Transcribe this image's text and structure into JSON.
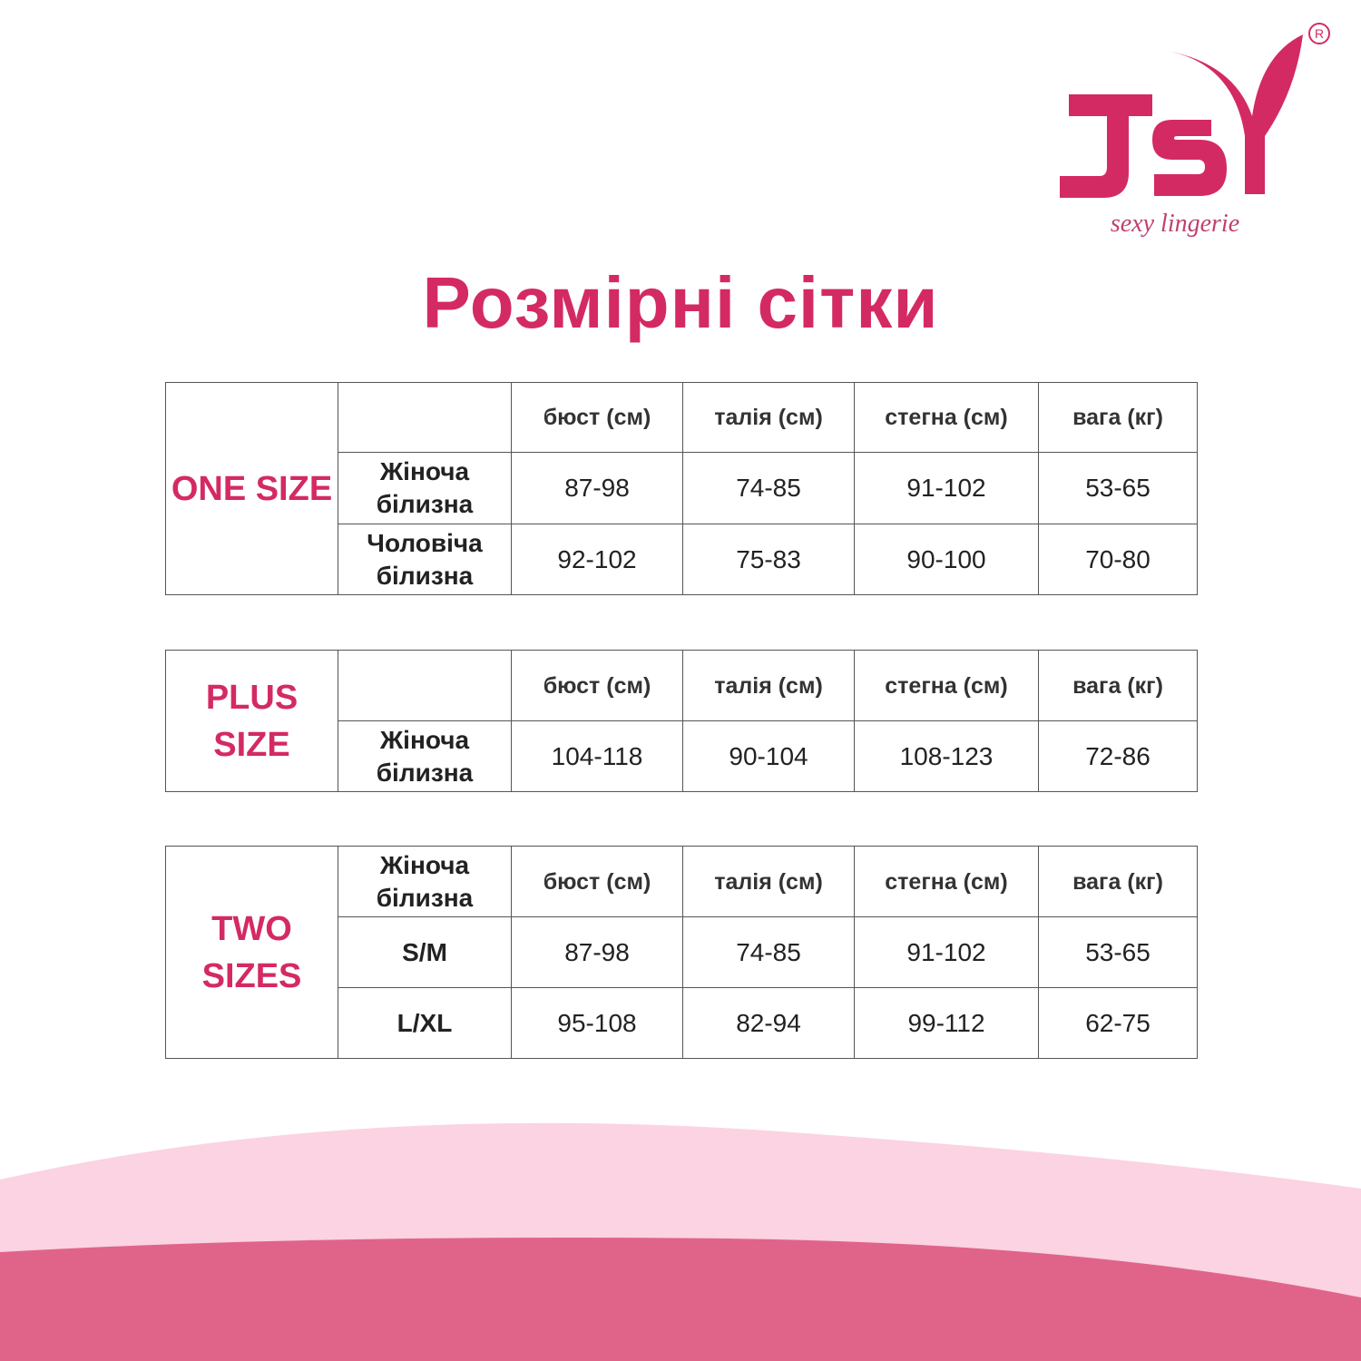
{
  "logo": {
    "brand": "JSY",
    "tagline": "sexy lingerie",
    "registered": "®",
    "color": "#d42a64"
  },
  "title": "Розмірні сітки",
  "colors": {
    "accent": "#d42a64",
    "wave_light": "#fbd3e3",
    "wave_dark": "#e0648a"
  },
  "tables": [
    {
      "size_label": "ONE SIZE",
      "corner": "",
      "headers": [
        "бюст (см)",
        "талія (см)",
        "стегна (см)",
        "вага (кг)"
      ],
      "rows": [
        {
          "label": "Жіноча білизна",
          "values": [
            "87-98",
            "74-85",
            "91-102",
            "53-65"
          ]
        },
        {
          "label": "Чоловіча білизна",
          "values": [
            "92-102",
            "75-83",
            "90-100",
            "70-80"
          ]
        }
      ]
    },
    {
      "size_label": "PLUS SIZE",
      "corner": "",
      "headers": [
        "бюст (см)",
        "талія (см)",
        "стегна (см)",
        "вага (кг)"
      ],
      "rows": [
        {
          "label": "Жіноча білизна",
          "values": [
            "104-118",
            "90-104",
            "108-123",
            "72-86"
          ]
        }
      ]
    },
    {
      "size_label": "TWO SIZES",
      "corner": "Жіноча білизна",
      "headers": [
        "бюст (см)",
        "талія (см)",
        "стегна (см)",
        "вага (кг)"
      ],
      "rows": [
        {
          "label": "S/M",
          "values": [
            "87-98",
            "74-85",
            "91-102",
            "53-65"
          ]
        },
        {
          "label": "L/XL",
          "values": [
            "95-108",
            "82-94",
            "99-112",
            "62-75"
          ]
        }
      ]
    }
  ]
}
